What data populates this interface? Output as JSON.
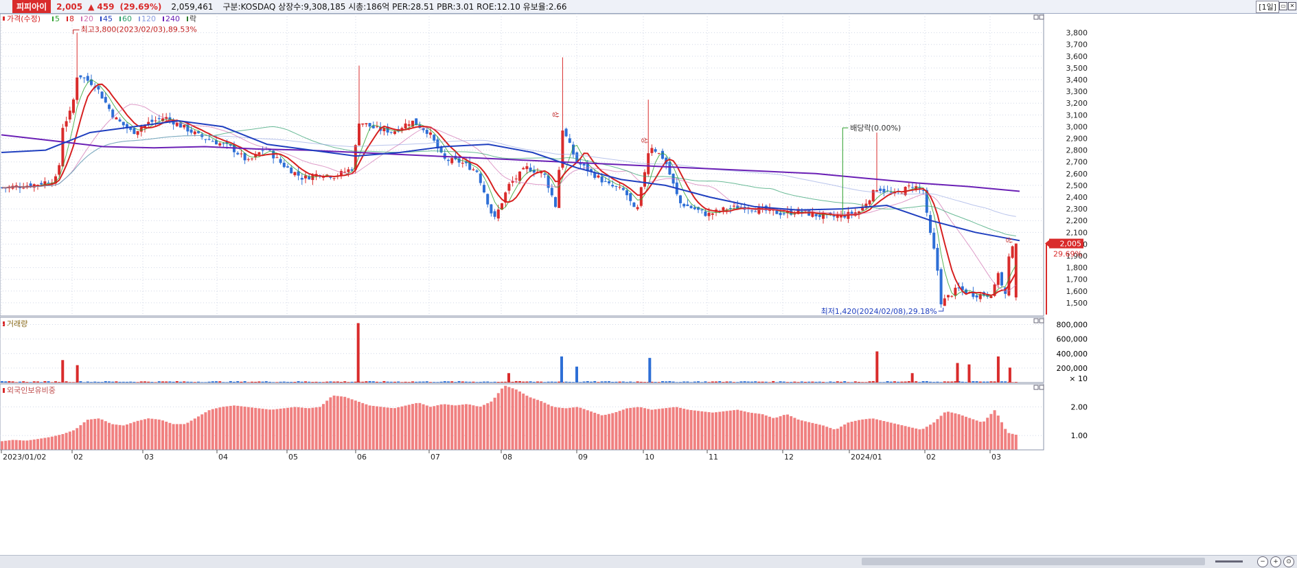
{
  "header": {
    "stock_name": "피피아이",
    "price": "2,005",
    "arrow": "▲",
    "change": "459",
    "change_pct": "(29.69%)",
    "volume": "2,059,461",
    "info": "구분:KOSDAQ  상장수:9,308,185  시총:186억  PER:28.51  PBR:3.01  ROE:12.10  유보율:2.66",
    "period": "[1일]"
  },
  "legend": {
    "price_label": "가격(수정)",
    "ma": [
      {
        "label": "5",
        "color": "#2ca02c"
      },
      {
        "label": "8",
        "color": "#d62020"
      },
      {
        "label": "20",
        "color": "#d070b0"
      },
      {
        "label": "45",
        "color": "#1f3fbf"
      },
      {
        "label": "60",
        "color": "#2a9d6a"
      },
      {
        "label": "120",
        "color": "#8a9de0"
      },
      {
        "label": "240",
        "color": "#6a1fb5"
      }
    ],
    "ex_label": "락"
  },
  "annotations": {
    "high": "최고3,800(2023/02/03),89.53%",
    "low": "최저1,420(2024/02/08),29.18%",
    "dividend": "배당락(0.00%)",
    "sang_marker": "상",
    "last_price_tag": "2,005",
    "last_pct_tag": "29.69%"
  },
  "panes": {
    "volume_title": "거래량",
    "volume_multiplier": "× 10",
    "foreign_title": "외국인보유비중"
  },
  "colors": {
    "up": "#d92b2b",
    "down": "#2e6fd6",
    "foreign_bar": "#f08080",
    "grid": "#cfd6e6"
  },
  "chart_data": [
    {
      "type": "candlestick",
      "title": "가격(수정)",
      "ylim": [
        1400,
        3950
      ],
      "yticks": [
        1500,
        1600,
        1700,
        1800,
        1900,
        2000,
        2100,
        2200,
        2300,
        2400,
        2500,
        2600,
        2700,
        2800,
        2900,
        3000,
        3100,
        3200,
        3300,
        3400,
        3500,
        3600,
        3700,
        3800
      ],
      "x_labels": [
        "2023/01/02",
        "02",
        "03",
        "04",
        "05",
        "06",
        "07",
        "08",
        "09",
        "10",
        "11",
        "12",
        "2024/01",
        "02",
        "03"
      ],
      "close_series": [
        {
          "date": "2023/01/02",
          "close": 2480
        },
        {
          "date": "2023/01/16",
          "close": 2510
        },
        {
          "date": "2023/01/25",
          "close": 2560
        },
        {
          "date": "2023/01/27",
          "close": 3000
        },
        {
          "date": "2023/02/01",
          "close": 3150
        },
        {
          "date": "2023/02/03",
          "close": 3450
        },
        {
          "date": "2023/02/10",
          "close": 3350
        },
        {
          "date": "2023/02/17",
          "close": 3080
        },
        {
          "date": "2023/02/24",
          "close": 2950
        },
        {
          "date": "2023/03/03",
          "close": 3030
        },
        {
          "date": "2023/03/10",
          "close": 3080
        },
        {
          "date": "2023/03/17",
          "close": 3000
        },
        {
          "date": "2023/03/24",
          "close": 2920
        },
        {
          "date": "2023/04/07",
          "close": 2820
        },
        {
          "date": "2023/04/14",
          "close": 2700
        },
        {
          "date": "2023/04/21",
          "close": 2820
        },
        {
          "date": "2023/04/28",
          "close": 2680
        },
        {
          "date": "2023/05/08",
          "close": 2560
        },
        {
          "date": "2023/05/15",
          "close": 2600
        },
        {
          "date": "2023/05/22",
          "close": 2580
        },
        {
          "date": "2023/05/30",
          "close": 2650
        },
        {
          "date": "2023/06/02",
          "close": 3050
        },
        {
          "date": "2023/06/09",
          "close": 2980
        },
        {
          "date": "2023/06/16",
          "close": 2960
        },
        {
          "date": "2023/06/23",
          "close": 3050
        },
        {
          "date": "2023/06/30",
          "close": 2950
        },
        {
          "date": "2023/07/07",
          "close": 2720
        },
        {
          "date": "2023/07/14",
          "close": 2700
        },
        {
          "date": "2023/07/21",
          "close": 2620
        },
        {
          "date": "2023/07/28",
          "close": 2200
        },
        {
          "date": "2023/08/04",
          "close": 2500
        },
        {
          "date": "2023/08/11",
          "close": 2650
        },
        {
          "date": "2023/08/18",
          "close": 2600
        },
        {
          "date": "2023/08/23",
          "close": 2300
        },
        {
          "date": "2023/08/25",
          "close": 3000
        },
        {
          "date": "2023/09/01",
          "close": 2700
        },
        {
          "date": "2023/09/08",
          "close": 2600
        },
        {
          "date": "2023/09/15",
          "close": 2500
        },
        {
          "date": "2023/09/22",
          "close": 2450
        },
        {
          "date": "2023/09/27",
          "close": 2250
        },
        {
          "date": "2023/10/04",
          "close": 2850
        },
        {
          "date": "2023/10/11",
          "close": 2720
        },
        {
          "date": "2023/10/18",
          "close": 2350
        },
        {
          "date": "2023/10/25",
          "close": 2300
        },
        {
          "date": "2023/11/01",
          "close": 2250
        },
        {
          "date": "2023/11/08",
          "close": 2300
        },
        {
          "date": "2023/11/15",
          "close": 2320
        },
        {
          "date": "2023/11/22",
          "close": 2290
        },
        {
          "date": "2023/12/01",
          "close": 2260
        },
        {
          "date": "2023/12/08",
          "close": 2280
        },
        {
          "date": "2023/12/15",
          "close": 2250
        },
        {
          "date": "2023/12/22",
          "close": 2230
        },
        {
          "date": "2023/12/28",
          "close": 2240
        },
        {
          "date": "2024/01/05",
          "close": 2280
        },
        {
          "date": "2024/01/12",
          "close": 2480
        },
        {
          "date": "2024/01/19",
          "close": 2420
        },
        {
          "date": "2024/01/26",
          "close": 2500
        },
        {
          "date": "2024/01/31",
          "close": 2450
        },
        {
          "date": "2024/02/02",
          "close": 2200
        },
        {
          "date": "2024/02/06",
          "close": 1850
        },
        {
          "date": "2024/02/08",
          "close": 1500
        },
        {
          "date": "2024/02/15",
          "close": 1620
        },
        {
          "date": "2024/02/22",
          "close": 1570
        },
        {
          "date": "2024/02/29",
          "close": 1570
        },
        {
          "date": "2024/03/06",
          "close": 1650
        },
        {
          "date": "2024/03/08",
          "close": 1770
        },
        {
          "date": "2024/03/12",
          "close": 1600
        },
        {
          "date": "2024/03/15",
          "close": 1550
        },
        {
          "date": "2024/03/18",
          "close": 2005
        }
      ],
      "ma_series": {
        "240": [
          2930,
          2880,
          2830,
          2820,
          2830,
          2810,
          2800,
          2780,
          2760,
          2740,
          2720,
          2700,
          2680,
          2660,
          2640,
          2620,
          2600,
          2560,
          2520,
          2490,
          2450
        ],
        "45": [
          2780,
          2800,
          2950,
          3000,
          3050,
          3000,
          2850,
          2800,
          2750,
          2780,
          2830,
          2850,
          2780,
          2650,
          2550,
          2500,
          2400,
          2320,
          2290,
          2300,
          2330,
          2200,
          2100,
          2030
        ]
      }
    },
    {
      "type": "bar",
      "title": "거래량",
      "ylim": [
        0,
        900000
      ],
      "yticks": [
        200000,
        400000,
        600000,
        800000
      ],
      "ytick_labels": [
        "200,000",
        "400,000",
        "600,000",
        "800,000"
      ],
      "peaks": [
        {
          "date": "2023/01/27",
          "value": 310000,
          "color": "up"
        },
        {
          "date": "2023/02/03",
          "value": 240000,
          "color": "up"
        },
        {
          "date": "2023/06/02",
          "value": 820000,
          "color": "up"
        },
        {
          "date": "2023/08/04",
          "value": 130000,
          "color": "up"
        },
        {
          "date": "2023/08/25",
          "value": 360000,
          "color": "down"
        },
        {
          "date": "2023/09/01",
          "value": 220000,
          "color": "down"
        },
        {
          "date": "2023/10/04",
          "value": 340000,
          "color": "down"
        },
        {
          "date": "2024/01/12",
          "value": 430000,
          "color": "up"
        },
        {
          "date": "2024/01/26",
          "value": 130000,
          "color": "up"
        },
        {
          "date": "2024/02/15",
          "value": 270000,
          "color": "up"
        },
        {
          "date": "2024/02/20",
          "value": 250000,
          "color": "up"
        },
        {
          "date": "2024/03/08",
          "value": 360000,
          "color": "up"
        },
        {
          "date": "2024/03/18",
          "value": 205946,
          "color": "up"
        }
      ]
    },
    {
      "type": "bar",
      "title": "외국인보유비중",
      "ylim": [
        0.5,
        2.8
      ],
      "yticks": [
        1.0,
        2.0
      ],
      "ytick_labels": [
        "1.00",
        "2.00"
      ],
      "values": [
        0.8,
        0.85,
        0.82,
        0.88,
        0.95,
        1.05,
        1.2,
        1.55,
        1.6,
        1.4,
        1.35,
        1.5,
        1.6,
        1.55,
        1.4,
        1.4,
        1.65,
        1.9,
        2.0,
        2.05,
        2.0,
        1.95,
        1.9,
        1.95,
        2.0,
        1.95,
        2.0,
        2.4,
        2.35,
        2.2,
        2.05,
        2.0,
        1.95,
        2.05,
        2.15,
        2.0,
        2.1,
        2.05,
        2.1,
        2.0,
        2.2,
        2.75,
        2.6,
        2.35,
        2.2,
        2.0,
        1.95,
        2.0,
        1.85,
        1.7,
        1.8,
        1.95,
        2.0,
        1.9,
        1.95,
        2.0,
        1.9,
        1.85,
        1.8,
        1.85,
        1.9,
        1.8,
        1.75,
        1.6,
        1.75,
        1.55,
        1.45,
        1.35,
        1.2,
        1.45,
        1.55,
        1.6,
        1.5,
        1.4,
        1.3,
        1.2,
        1.45,
        1.85,
        1.75,
        1.6,
        1.45,
        1.9,
        1.1,
        1.0
      ]
    }
  ]
}
